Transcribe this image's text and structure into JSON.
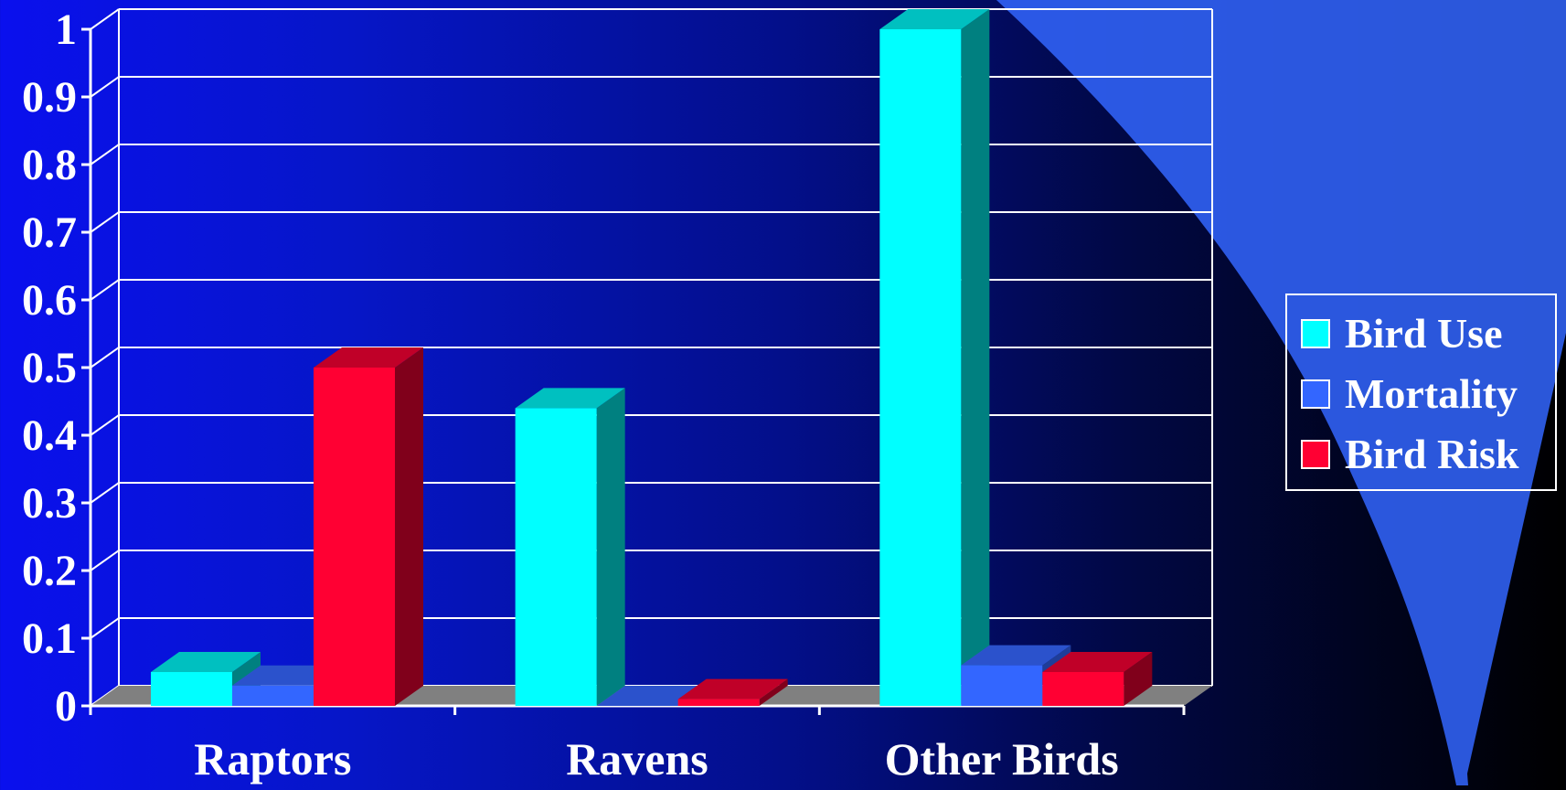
{
  "chart_data": {
    "type": "bar",
    "categories": [
      "Raptors",
      "Ravens",
      "Other Birds"
    ],
    "series": [
      {
        "name": "Bird Use",
        "values": [
          0.05,
          0.44,
          1.0
        ],
        "color": "#00ffff",
        "top_color": "#00c0c0",
        "side_color": "#008080"
      },
      {
        "name": "Mortality",
        "values": [
          0.03,
          0.0,
          0.06
        ],
        "color": "#3366ff",
        "top_color": "#2b52cc",
        "side_color": "#1f3d99"
      },
      {
        "name": "Bird Risk",
        "values": [
          0.5,
          0.01,
          0.05
        ],
        "color": "#ff0033",
        "top_color": "#c00028",
        "side_color": "#80001b"
      }
    ],
    "yticks": [
      "0",
      "0.1",
      "0.2",
      "0.3",
      "0.4",
      "0.5",
      "0.6",
      "0.7",
      "0.8",
      "0.9",
      "1"
    ],
    "ylim": [
      0,
      1
    ],
    "grid": true,
    "legend_position": "right",
    "colors": {
      "grid": "#ffffff",
      "floor": "#808080",
      "decor_beam": "#3366ff"
    }
  }
}
